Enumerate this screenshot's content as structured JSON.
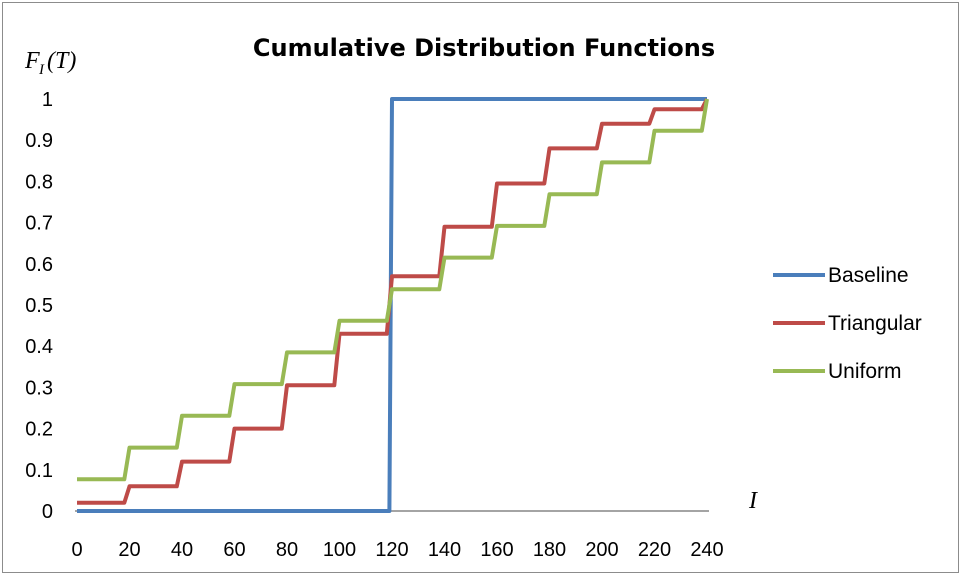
{
  "chart_data": {
    "type": "line",
    "title": "Cumulative Distribution Functions",
    "ylabel_main": "F",
    "ylabel_sub": "I",
    "ylabel_arg": "(T)",
    "xlabel": "I",
    "xlim": [
      0,
      240
    ],
    "ylim": [
      0,
      1
    ],
    "xticks": [
      0,
      20,
      40,
      60,
      80,
      100,
      120,
      140,
      160,
      180,
      200,
      220,
      240
    ],
    "yticks": [
      0,
      0.1,
      0.2,
      0.3,
      0.4,
      0.5,
      0.6,
      0.7,
      0.8,
      0.9,
      1
    ],
    "grid": false,
    "legend_position": "right",
    "series": [
      {
        "name": "Baseline",
        "color": "#4a7ebb",
        "x": [
          0,
          119,
          120,
          240
        ],
        "y": [
          0,
          0,
          1,
          1
        ]
      },
      {
        "name": "Triangular",
        "color": "#be4b48",
        "x": [
          0,
          18,
          20,
          38,
          40,
          58,
          60,
          78,
          80,
          98,
          100,
          118,
          120,
          138,
          140,
          158,
          160,
          178,
          180,
          198,
          200,
          218,
          220,
          238,
          240
        ],
        "y": [
          0.02,
          0.02,
          0.06,
          0.06,
          0.12,
          0.12,
          0.2,
          0.2,
          0.305,
          0.305,
          0.43,
          0.43,
          0.57,
          0.57,
          0.69,
          0.69,
          0.795,
          0.795,
          0.88,
          0.88,
          0.94,
          0.94,
          0.975,
          0.975,
          1.0
        ]
      },
      {
        "name": "Uniform",
        "color": "#98b954",
        "x": [
          0,
          18,
          20,
          38,
          40,
          58,
          60,
          78,
          80,
          98,
          100,
          118,
          120,
          138,
          140,
          158,
          160,
          178,
          180,
          198,
          200,
          218,
          220,
          238,
          240
        ],
        "y": [
          0.077,
          0.077,
          0.154,
          0.154,
          0.231,
          0.231,
          0.308,
          0.308,
          0.385,
          0.385,
          0.462,
          0.462,
          0.538,
          0.538,
          0.615,
          0.615,
          0.692,
          0.692,
          0.769,
          0.769,
          0.846,
          0.846,
          0.923,
          0.923,
          1.0
        ]
      }
    ]
  }
}
